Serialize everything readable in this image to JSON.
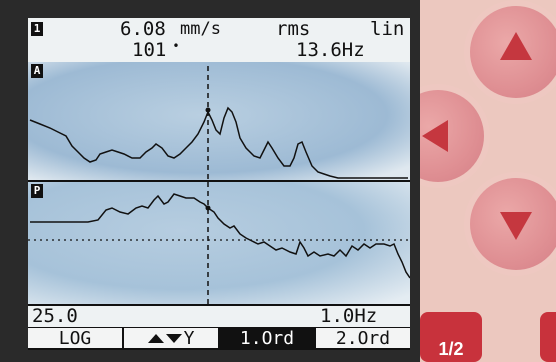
{
  "header": {
    "channel": "1",
    "value": "6.08",
    "unit": "mm/s",
    "detector": "rms",
    "scale": "lin",
    "cursor_line": "101",
    "frequency": "13.6Hz"
  },
  "panels": {
    "amplitude_label": "A",
    "phase_label": "P"
  },
  "footer": {
    "left_value": "25.0",
    "right_value": "1.0Hz"
  },
  "softkeys": {
    "log": "LOG",
    "y_label": "Y",
    "order1": "1.Ord",
    "order2": "2.Ord"
  },
  "keypad": {
    "half_label": "1/2"
  },
  "colors": {
    "lcd_blue": "#9fbdd6",
    "key_red": "#c8323c",
    "key_pink": "#df8f93"
  }
}
